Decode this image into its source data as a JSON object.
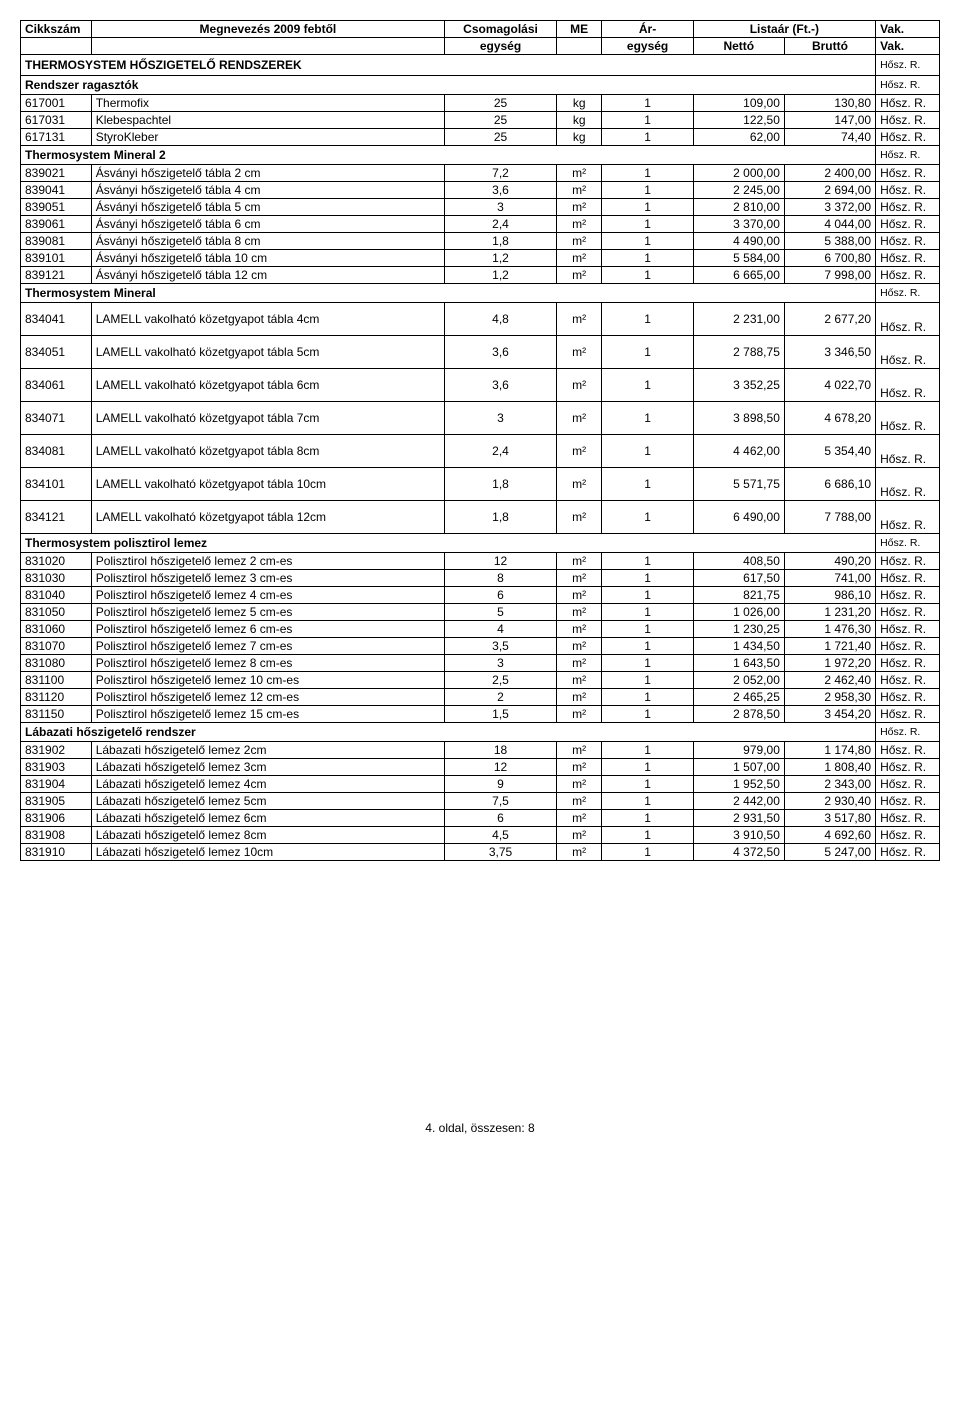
{
  "header": {
    "cikkszam": "Cikkszám",
    "megnev": "Megnevezés 2009 febtől",
    "csom1": "Csomagolási",
    "csom2": "egység",
    "me": "ME",
    "ar1": "Ár-",
    "ar2": "egység",
    "lista": "Listaár (Ft.-)",
    "netto": "Nettó",
    "brutto": "Bruttó",
    "vak": "Vak.",
    "vak2": "Vak."
  },
  "labels": {
    "hosz": "Hősz. R."
  },
  "sections": [
    {
      "type": "big",
      "title": "THERMOSYSTEM HŐSZIGETELŐ RENDSZEREK",
      "vak": "Hősz. R."
    },
    {
      "type": "sub",
      "title": "Rendszer ragasztók",
      "vak": "Hősz. R."
    },
    {
      "type": "row",
      "cikk": "617001",
      "name": "Thermofix",
      "csom": "25",
      "me": "kg",
      "ar": "1",
      "netto": "109,00",
      "brutto": "130,80",
      "vak": "Hősz. R."
    },
    {
      "type": "row",
      "cikk": "617031",
      "name": "Klebespachtel",
      "csom": "25",
      "me": "kg",
      "ar": "1",
      "netto": "122,50",
      "brutto": "147,00",
      "vak": "Hősz. R."
    },
    {
      "type": "row",
      "cikk": "617131",
      "name": "StyroKleber",
      "csom": "25",
      "me": "kg",
      "ar": "1",
      "netto": "62,00",
      "brutto": "74,40",
      "vak": "Hősz. R."
    },
    {
      "type": "sub",
      "title": "Thermosystem Mineral 2",
      "vak": "Hősz. R."
    },
    {
      "type": "row",
      "cikk": "839021",
      "name": "Ásványi hőszigetelő tábla 2 cm",
      "csom": "7,2",
      "me": "m²",
      "ar": "1",
      "netto": "2 000,00",
      "brutto": "2 400,00",
      "vak": "Hősz. R."
    },
    {
      "type": "row",
      "cikk": "839041",
      "name": "Ásványi hőszigetelő tábla 4 cm",
      "csom": "3,6",
      "me": "m²",
      "ar": "1",
      "netto": "2 245,00",
      "brutto": "2 694,00",
      "vak": "Hősz. R."
    },
    {
      "type": "row",
      "cikk": "839051",
      "name": "Ásványi hőszigetelő tábla 5 cm",
      "csom": "3",
      "me": "m²",
      "ar": "1",
      "netto": "2 810,00",
      "brutto": "3 372,00",
      "vak": "Hősz. R."
    },
    {
      "type": "row",
      "cikk": "839061",
      "name": "Ásványi hőszigetelő tábla 6 cm",
      "csom": "2,4",
      "me": "m²",
      "ar": "1",
      "netto": "3 370,00",
      "brutto": "4 044,00",
      "vak": "Hősz. R."
    },
    {
      "type": "row",
      "cikk": "839081",
      "name": "Ásványi hőszigetelő tábla 8 cm",
      "csom": "1,8",
      "me": "m²",
      "ar": "1",
      "netto": "4 490,00",
      "brutto": "5 388,00",
      "vak": "Hősz. R."
    },
    {
      "type": "row",
      "cikk": "839101",
      "name": "Ásványi hőszigetelő tábla 10 cm",
      "csom": "1,2",
      "me": "m²",
      "ar": "1",
      "netto": "5 584,00",
      "brutto": "6 700,80",
      "vak": "Hősz. R."
    },
    {
      "type": "row",
      "cikk": "839121",
      "name": "Ásványi hőszigetelő tábla 12 cm",
      "csom": "1,2",
      "me": "m²",
      "ar": "1",
      "netto": "6 665,00",
      "brutto": "7 998,00",
      "vak": "Hősz. R."
    },
    {
      "type": "sub",
      "title": "Thermosystem Mineral",
      "vak": "Hősz. R."
    },
    {
      "type": "tallrow",
      "cikk": "834041",
      "name": "LAMELL vakolható közetgyapot tábla 4cm",
      "csom": "4,8",
      "me": "m²",
      "ar": "1",
      "netto": "2 231,00",
      "brutto": "2 677,20",
      "vak": "Hősz. R."
    },
    {
      "type": "tallrow",
      "cikk": "834051",
      "name": "LAMELL vakolható közetgyapot tábla 5cm",
      "csom": "3,6",
      "me": "m²",
      "ar": "1",
      "netto": "2 788,75",
      "brutto": "3 346,50",
      "vak": "Hősz. R."
    },
    {
      "type": "tallrow",
      "cikk": "834061",
      "name": "LAMELL vakolható közetgyapot tábla 6cm",
      "csom": "3,6",
      "me": "m²",
      "ar": "1",
      "netto": "3 352,25",
      "brutto": "4 022,70",
      "vak": "Hősz. R."
    },
    {
      "type": "tallrow",
      "cikk": "834071",
      "name": "LAMELL vakolható közetgyapot tábla 7cm",
      "csom": "3",
      "me": "m²",
      "ar": "1",
      "netto": "3 898,50",
      "brutto": "4 678,20",
      "vak": "Hősz. R."
    },
    {
      "type": "tallrow",
      "cikk": "834081",
      "name": "LAMELL vakolható közetgyapot tábla 8cm",
      "csom": "2,4",
      "me": "m²",
      "ar": "1",
      "netto": "4 462,00",
      "brutto": "5 354,40",
      "vak": "Hősz. R."
    },
    {
      "type": "tallrow",
      "cikk": "834101",
      "name": "LAMELL vakolható közetgyapot tábla 10cm",
      "csom": "1,8",
      "me": "m²",
      "ar": "1",
      "netto": "5 571,75",
      "brutto": "6 686,10",
      "vak": "Hősz. R."
    },
    {
      "type": "tallrow",
      "cikk": "834121",
      "name": "LAMELL vakolható közetgyapot tábla 12cm",
      "csom": "1,8",
      "me": "m²",
      "ar": "1",
      "netto": "6 490,00",
      "brutto": "7 788,00",
      "vak": "Hősz. R."
    },
    {
      "type": "sub",
      "title": "Thermosystem polisztirol lemez",
      "vak": "Hősz. R."
    },
    {
      "type": "row",
      "cikk": "831020",
      "name": "Polisztirol hőszigetelő lemez  2 cm-es",
      "csom": "12",
      "me": "m²",
      "ar": "1",
      "netto": "408,50",
      "brutto": "490,20",
      "vak": "Hősz. R."
    },
    {
      "type": "row",
      "cikk": "831030",
      "name": "Polisztirol hőszigetelő lemez  3 cm-es",
      "csom": "8",
      "me": "m²",
      "ar": "1",
      "netto": "617,50",
      "brutto": "741,00",
      "vak": "Hősz. R."
    },
    {
      "type": "row",
      "cikk": "831040",
      "name": "Polisztirol hőszigetelő lemez  4 cm-es",
      "csom": "6",
      "me": "m²",
      "ar": "1",
      "netto": "821,75",
      "brutto": "986,10",
      "vak": "Hősz. R."
    },
    {
      "type": "row",
      "cikk": "831050",
      "name": "Polisztirol hőszigetelő lemez  5 cm-es",
      "csom": "5",
      "me": "m²",
      "ar": "1",
      "netto": "1 026,00",
      "brutto": "1 231,20",
      "vak": "Hősz. R."
    },
    {
      "type": "row",
      "cikk": "831060",
      "name": "Polisztirol hőszigetelő lemez  6 cm-es",
      "csom": "4",
      "me": "m²",
      "ar": "1",
      "netto": "1 230,25",
      "brutto": "1 476,30",
      "vak": "Hősz. R."
    },
    {
      "type": "row",
      "cikk": "831070",
      "name": "Polisztirol hőszigetelő lemez 7 cm-es",
      "csom": "3,5",
      "me": "m²",
      "ar": "1",
      "netto": "1 434,50",
      "brutto": "1 721,40",
      "vak": "Hősz. R."
    },
    {
      "type": "row",
      "cikk": "831080",
      "name": "Polisztirol hőszigetelő lemez  8 cm-es",
      "csom": "3",
      "me": "m²",
      "ar": "1",
      "netto": "1 643,50",
      "brutto": "1 972,20",
      "vak": "Hősz. R."
    },
    {
      "type": "row",
      "cikk": "831100",
      "name": "Polisztirol hőszigetelő lemez 10 cm-es",
      "csom": "2,5",
      "me": "m²",
      "ar": "1",
      "netto": "2 052,00",
      "brutto": "2 462,40",
      "vak": "Hősz. R."
    },
    {
      "type": "row",
      "cikk": "831120",
      "name": "Polisztirol hőszigetelő lemez 12 cm-es",
      "csom": "2",
      "me": "m²",
      "ar": "1",
      "netto": "2 465,25",
      "brutto": "2 958,30",
      "vak": "Hősz. R."
    },
    {
      "type": "row",
      "cikk": "831150",
      "name": "Polisztirol hőszigetelő lemez 15 cm-es",
      "csom": "1,5",
      "me": "m²",
      "ar": "1",
      "netto": "2 878,50",
      "brutto": "3 454,20",
      "vak": "Hősz. R."
    },
    {
      "type": "sub",
      "title": "Lábazati hőszigetelő rendszer",
      "vak": "Hősz. R."
    },
    {
      "type": "row",
      "cikk": "831902",
      "name": "Lábazati hőszigetelő lemez  2cm",
      "csom": "18",
      "me": "m²",
      "ar": "1",
      "netto": "979,00",
      "brutto": "1 174,80",
      "vak": "Hősz. R."
    },
    {
      "type": "row",
      "cikk": "831903",
      "name": "Lábazati hőszigetelő lemez  3cm",
      "csom": "12",
      "me": "m²",
      "ar": "1",
      "netto": "1 507,00",
      "brutto": "1 808,40",
      "vak": "Hősz. R."
    },
    {
      "type": "row",
      "cikk": "831904",
      "name": "Lábazati hőszigetelő lemez  4cm",
      "csom": "9",
      "me": "m²",
      "ar": "1",
      "netto": "1 952,50",
      "brutto": "2 343,00",
      "vak": "Hősz. R."
    },
    {
      "type": "row",
      "cikk": "831905",
      "name": "Lábazati hőszigetelő lemez  5cm",
      "csom": "7,5",
      "me": "m²",
      "ar": "1",
      "netto": "2 442,00",
      "brutto": "2 930,40",
      "vak": "Hősz. R."
    },
    {
      "type": "row",
      "cikk": "831906",
      "name": "Lábazati hőszigetelő lemez  6cm",
      "csom": "6",
      "me": "m²",
      "ar": "1",
      "netto": "2 931,50",
      "brutto": "3 517,80",
      "vak": "Hősz. R."
    },
    {
      "type": "row",
      "cikk": "831908",
      "name": "Lábazati hőszigetelő lemez  8cm",
      "csom": "4,5",
      "me": "m²",
      "ar": "1",
      "netto": "3 910,50",
      "brutto": "4 692,60",
      "vak": "Hősz. R."
    },
    {
      "type": "row",
      "cikk": "831910",
      "name": "Lábazati hőszigetelő lemez 10cm",
      "csom": "3,75",
      "me": "m²",
      "ar": "1",
      "netto": "4 372,50",
      "brutto": "5 247,00",
      "vak": "Hősz. R."
    }
  ],
  "footer": "4. oldal, összesen: 8"
}
